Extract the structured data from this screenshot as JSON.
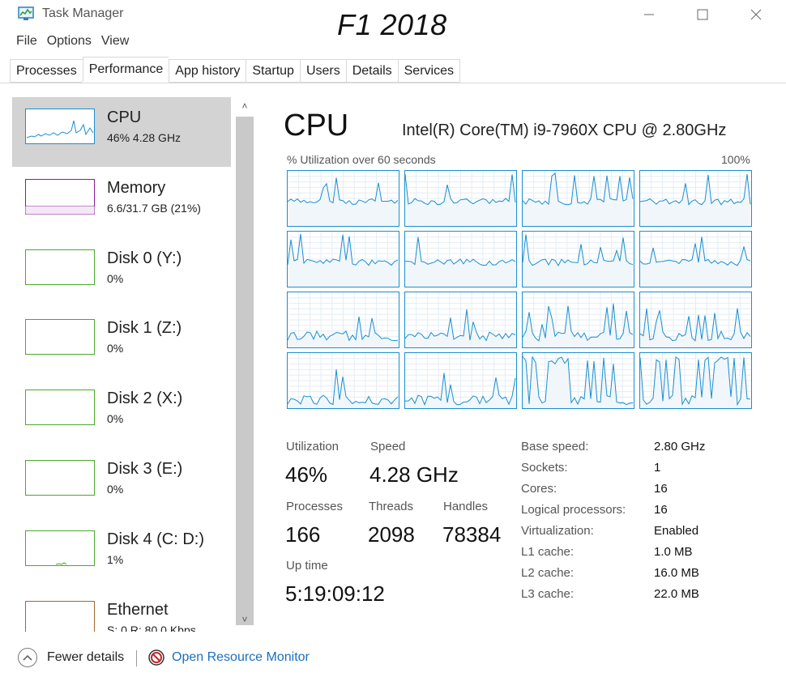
{
  "window": {
    "app_title": "Task Manager",
    "overlay_title": "F1 2018",
    "icons": {
      "app": "task-manager-icon",
      "min": "minimize-icon",
      "max": "maximize-icon",
      "close": "close-icon"
    }
  },
  "menu": [
    "File",
    "Options",
    "View"
  ],
  "tabs": [
    "Processes",
    "Performance",
    "App history",
    "Startup",
    "Users",
    "Details",
    "Services"
  ],
  "active_tab": "Performance",
  "sidebar": {
    "items": [
      {
        "name": "CPU",
        "sub": "46% 4.28 GHz",
        "color": "#1a8fd0",
        "selected": true
      },
      {
        "name": "Memory",
        "sub": "6.6/31.7 GB (21%)",
        "color": "#8b1a9b",
        "selected": false
      },
      {
        "name": "Disk 0 (Y:)",
        "sub": "0%",
        "color": "#4ca82c",
        "selected": false
      },
      {
        "name": "Disk 1 (Z:)",
        "sub": "0%",
        "color": "#4ca82c",
        "selected": false
      },
      {
        "name": "Disk 2 (X:)",
        "sub": "0%",
        "color": "#4ca82c",
        "selected": false
      },
      {
        "name": "Disk 3 (E:)",
        "sub": "0%",
        "color": "#4ca82c",
        "selected": false
      },
      {
        "name": "Disk 4 (C: D:)",
        "sub": "1%",
        "color": "#4ca82c",
        "selected": false
      },
      {
        "name": "Ethernet",
        "sub": "S: 0 R: 80.0 Kbps",
        "color": "#a7672c",
        "selected": false
      }
    ]
  },
  "main": {
    "title": "CPU",
    "model": "Intel(R) Core(TM) i9-7960X CPU @ 2.80GHz",
    "graph_caption": "% Utilization over 60 seconds",
    "graph_max": "100%",
    "core_count": 16,
    "stats": {
      "utilization_label": "Utilization",
      "utilization": "46%",
      "speed_label": "Speed",
      "speed": "4.28 GHz",
      "processes_label": "Processes",
      "processes": "166",
      "threads_label": "Threads",
      "threads": "2098",
      "handles_label": "Handles",
      "handles": "78384",
      "uptime_label": "Up time",
      "uptime": "5:19:09:12"
    },
    "specs": [
      {
        "label": "Base speed:",
        "value": "2.80 GHz"
      },
      {
        "label": "Sockets:",
        "value": "1"
      },
      {
        "label": "Cores:",
        "value": "16"
      },
      {
        "label": "Logical processors:",
        "value": "16"
      },
      {
        "label": "Virtualization:",
        "value": "Enabled"
      },
      {
        "label": "L1 cache:",
        "value": "1.0 MB"
      },
      {
        "label": "L2 cache:",
        "value": "16.0 MB"
      },
      {
        "label": "L3 cache:",
        "value": "22.0 MB"
      }
    ]
  },
  "footer": {
    "fewer_details": "Fewer details",
    "open_resource_monitor": "Open Resource Monitor"
  },
  "colors": {
    "accent": "#1a8fd0",
    "graph_fill": "#f1f6fb",
    "link": "#1a6fc0"
  }
}
